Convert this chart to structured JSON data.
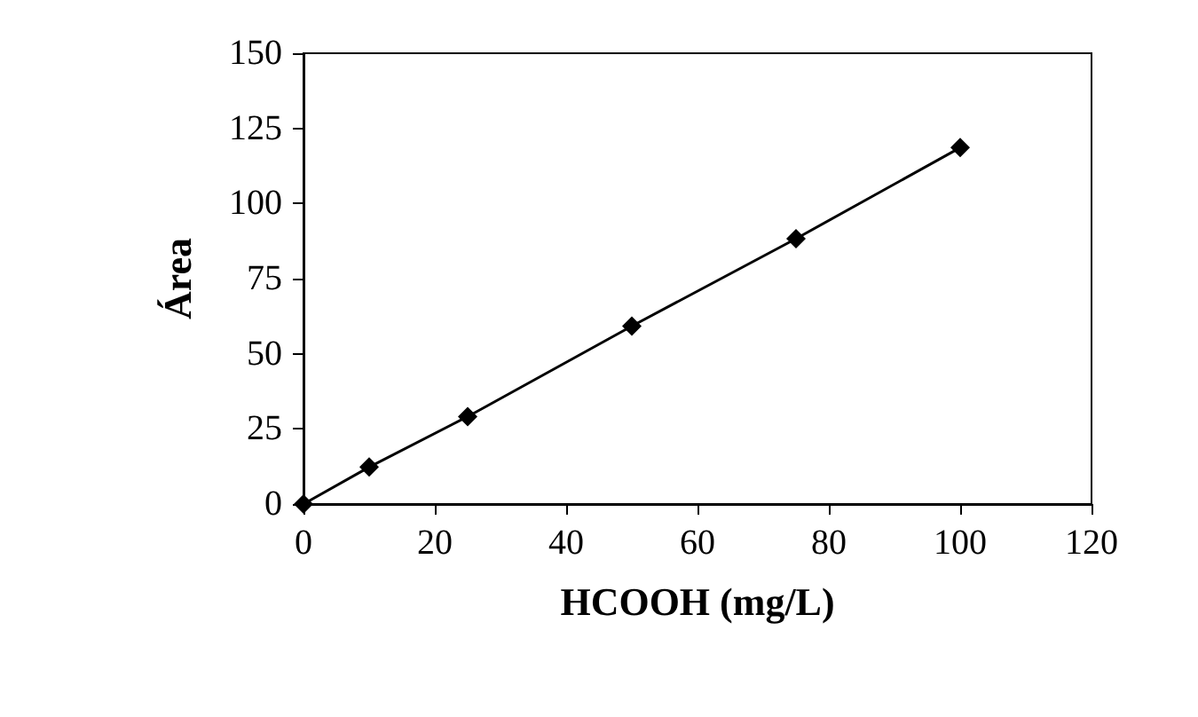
{
  "chart_data": {
    "type": "line",
    "xlabel": "HCOOH (mg/L)",
    "ylabel": "Área",
    "x": [
      0,
      10,
      25,
      50,
      75,
      100
    ],
    "series": [
      {
        "color": "#000000",
        "values": [
          0,
          12.3,
          29.1,
          59.2,
          88.3,
          118.6
        ]
      }
    ],
    "xlim": [
      0,
      120
    ],
    "xticks": [
      0,
      20,
      40,
      60,
      80,
      100,
      120
    ],
    "ylim": [
      0,
      150
    ],
    "yticks": [
      0,
      25,
      50,
      75,
      100,
      125,
      150
    ],
    "grid": false,
    "marker": "diamond",
    "line_style": "solid"
  }
}
